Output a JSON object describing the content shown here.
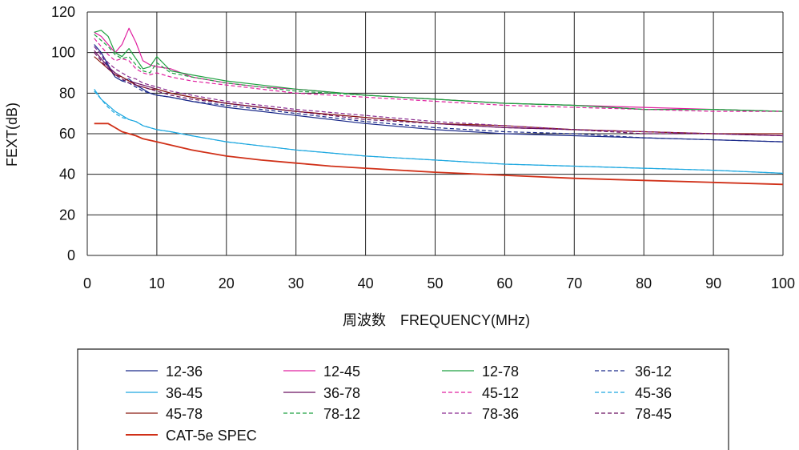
{
  "chart_data": {
    "type": "line",
    "title": "",
    "xlabel": "周波数　FREQUENCY(MHz)",
    "ylabel": "FEXT(dB)",
    "xlim": [
      0,
      100
    ],
    "ylim": [
      0,
      120
    ],
    "xticks": [
      0,
      10,
      20,
      30,
      40,
      50,
      60,
      70,
      80,
      90,
      100
    ],
    "yticks": [
      0,
      20,
      40,
      60,
      80,
      100,
      120
    ],
    "grid": true,
    "legend_position": "bottom",
    "series": [
      {
        "name": "12-36",
        "color": "#1b2a8a",
        "dash": "solid",
        "points": [
          [
            1,
            104
          ],
          [
            2,
            100
          ],
          [
            3,
            94
          ],
          [
            4,
            88
          ],
          [
            5,
            86
          ],
          [
            6,
            87
          ],
          [
            7,
            84
          ],
          [
            8,
            82
          ],
          [
            9,
            80
          ],
          [
            10,
            79
          ],
          [
            12,
            78
          ],
          [
            15,
            76
          ],
          [
            20,
            73
          ],
          [
            25,
            71
          ],
          [
            30,
            69
          ],
          [
            40,
            65
          ],
          [
            50,
            62
          ],
          [
            60,
            60
          ],
          [
            70,
            59
          ],
          [
            80,
            58
          ],
          [
            90,
            57
          ],
          [
            100,
            56
          ]
        ]
      },
      {
        "name": "12-45",
        "color": "#e020a0",
        "dash": "solid",
        "points": [
          [
            1,
            110
          ],
          [
            2,
            108
          ],
          [
            3,
            104
          ],
          [
            4,
            100
          ],
          [
            5,
            104
          ],
          [
            6,
            112
          ],
          [
            7,
            105
          ],
          [
            8,
            96
          ],
          [
            9,
            94
          ],
          [
            10,
            93
          ],
          [
            12,
            92
          ],
          [
            15,
            88
          ],
          [
            20,
            85
          ],
          [
            25,
            83
          ],
          [
            30,
            82
          ],
          [
            40,
            79
          ],
          [
            50,
            77
          ],
          [
            60,
            75
          ],
          [
            70,
            74
          ],
          [
            80,
            73
          ],
          [
            90,
            72
          ],
          [
            100,
            71
          ]
        ]
      },
      {
        "name": "12-78",
        "color": "#1ea040",
        "dash": "solid",
        "points": [
          [
            1,
            110
          ],
          [
            2,
            111
          ],
          [
            3,
            108
          ],
          [
            4,
            100
          ],
          [
            5,
            98
          ],
          [
            6,
            102
          ],
          [
            7,
            97
          ],
          [
            8,
            92
          ],
          [
            9,
            93
          ],
          [
            10,
            98
          ],
          [
            12,
            91
          ],
          [
            15,
            89
          ],
          [
            20,
            86
          ],
          [
            25,
            84
          ],
          [
            30,
            82
          ],
          [
            40,
            79
          ],
          [
            50,
            77
          ],
          [
            60,
            75
          ],
          [
            70,
            74
          ],
          [
            80,
            72
          ],
          [
            90,
            72
          ],
          [
            100,
            71
          ]
        ]
      },
      {
        "name": "36-12",
        "color": "#1b2a8a",
        "dash": "dash",
        "points": [
          [
            1,
            103
          ],
          [
            2,
            99
          ],
          [
            3,
            93
          ],
          [
            4,
            88
          ],
          [
            5,
            86
          ],
          [
            6,
            85
          ],
          [
            7,
            83
          ],
          [
            8,
            81
          ],
          [
            9,
            80
          ],
          [
            10,
            79
          ],
          [
            12,
            78
          ],
          [
            15,
            76
          ],
          [
            20,
            74
          ],
          [
            25,
            72
          ],
          [
            30,
            70
          ],
          [
            40,
            66
          ],
          [
            50,
            63
          ],
          [
            60,
            61
          ],
          [
            70,
            60
          ],
          [
            80,
            58
          ],
          [
            90,
            57
          ],
          [
            100,
            56
          ]
        ]
      },
      {
        "name": "36-45",
        "color": "#1ea8e0",
        "dash": "solid",
        "points": [
          [
            1,
            82
          ],
          [
            2,
            77
          ],
          [
            3,
            74
          ],
          [
            4,
            71
          ],
          [
            5,
            69
          ],
          [
            6,
            67
          ],
          [
            7,
            66
          ],
          [
            8,
            64
          ],
          [
            9,
            63
          ],
          [
            10,
            62
          ],
          [
            12,
            61
          ],
          [
            15,
            59
          ],
          [
            20,
            56
          ],
          [
            25,
            54
          ],
          [
            30,
            52
          ],
          [
            40,
            49
          ],
          [
            50,
            47
          ],
          [
            60,
            45
          ],
          [
            70,
            44
          ],
          [
            80,
            43
          ],
          [
            90,
            42
          ],
          [
            100,
            40.5
          ]
        ]
      },
      {
        "name": "36-78",
        "color": "#6a1060",
        "dash": "solid",
        "points": [
          [
            1,
            101
          ],
          [
            2,
            97
          ],
          [
            3,
            93
          ],
          [
            4,
            90
          ],
          [
            5,
            88
          ],
          [
            6,
            86
          ],
          [
            7,
            85
          ],
          [
            8,
            84
          ],
          [
            9,
            83
          ],
          [
            10,
            82
          ],
          [
            12,
            80
          ],
          [
            15,
            78
          ],
          [
            20,
            75
          ],
          [
            25,
            73
          ],
          [
            30,
            71
          ],
          [
            40,
            68
          ],
          [
            50,
            65
          ],
          [
            60,
            63
          ],
          [
            70,
            62
          ],
          [
            80,
            61
          ],
          [
            90,
            60
          ],
          [
            100,
            59
          ]
        ]
      },
      {
        "name": "45-12",
        "color": "#e020a0",
        "dash": "dash",
        "points": [
          [
            1,
            107
          ],
          [
            2,
            103
          ],
          [
            3,
            99
          ],
          [
            4,
            96
          ],
          [
            5,
            97
          ],
          [
            6,
            96
          ],
          [
            7,
            92
          ],
          [
            8,
            90
          ],
          [
            9,
            89
          ],
          [
            10,
            90
          ],
          [
            12,
            88
          ],
          [
            15,
            86
          ],
          [
            20,
            84
          ],
          [
            25,
            82
          ],
          [
            30,
            80
          ],
          [
            40,
            78
          ],
          [
            50,
            76
          ],
          [
            60,
            74
          ],
          [
            70,
            73
          ],
          [
            80,
            72
          ],
          [
            90,
            71
          ],
          [
            100,
            71
          ]
        ]
      },
      {
        "name": "45-36",
        "color": "#1ea8e0",
        "dash": "dash",
        "points": [
          [
            1,
            81
          ],
          [
            2,
            77
          ],
          [
            3,
            73
          ],
          [
            4,
            70
          ],
          [
            5,
            68
          ],
          [
            6,
            67
          ],
          [
            7,
            66
          ],
          [
            8,
            64
          ],
          [
            9,
            63
          ],
          [
            10,
            62
          ],
          [
            12,
            61
          ],
          [
            15,
            59
          ],
          [
            20,
            56
          ],
          [
            25,
            54
          ],
          [
            30,
            52
          ],
          [
            40,
            49
          ],
          [
            50,
            47
          ],
          [
            60,
            45
          ],
          [
            70,
            44
          ],
          [
            80,
            43
          ],
          [
            90,
            42
          ],
          [
            100,
            40.5
          ]
        ]
      },
      {
        "name": "45-78",
        "color": "#8a1a10",
        "dash": "solid",
        "points": [
          [
            1,
            98
          ],
          [
            2,
            95
          ],
          [
            3,
            92
          ],
          [
            4,
            89
          ],
          [
            5,
            88
          ],
          [
            6,
            86
          ],
          [
            7,
            84
          ],
          [
            8,
            83
          ],
          [
            9,
            82
          ],
          [
            10,
            82
          ],
          [
            12,
            80
          ],
          [
            15,
            78
          ],
          [
            20,
            75
          ],
          [
            25,
            73
          ],
          [
            30,
            71
          ],
          [
            40,
            68
          ],
          [
            50,
            65
          ],
          [
            60,
            64
          ],
          [
            70,
            62
          ],
          [
            80,
            61
          ],
          [
            90,
            60
          ],
          [
            100,
            60
          ]
        ]
      },
      {
        "name": "78-12",
        "color": "#1ea040",
        "dash": "dash",
        "points": [
          [
            1,
            109
          ],
          [
            2,
            106
          ],
          [
            3,
            103
          ],
          [
            4,
            99
          ],
          [
            5,
            97
          ],
          [
            6,
            98
          ],
          [
            7,
            94
          ],
          [
            8,
            91
          ],
          [
            9,
            90
          ],
          [
            10,
            95
          ],
          [
            12,
            90
          ],
          [
            15,
            88
          ],
          [
            20,
            85
          ],
          [
            25,
            83
          ],
          [
            30,
            81
          ],
          [
            40,
            79
          ],
          [
            50,
            77
          ],
          [
            60,
            75
          ],
          [
            70,
            74
          ],
          [
            80,
            72
          ],
          [
            90,
            72
          ],
          [
            100,
            71
          ]
        ]
      },
      {
        "name": "78-36",
        "color": "#8a2a90",
        "dash": "dash",
        "points": [
          [
            1,
            103
          ],
          [
            2,
            99
          ],
          [
            3,
            95
          ],
          [
            4,
            92
          ],
          [
            5,
            90
          ],
          [
            6,
            88
          ],
          [
            7,
            87
          ],
          [
            8,
            85
          ],
          [
            9,
            84
          ],
          [
            10,
            83
          ],
          [
            12,
            81
          ],
          [
            15,
            79
          ],
          [
            20,
            76
          ],
          [
            25,
            74
          ],
          [
            30,
            72
          ],
          [
            40,
            69
          ],
          [
            50,
            66
          ],
          [
            60,
            64
          ],
          [
            70,
            62
          ],
          [
            80,
            61
          ],
          [
            90,
            60
          ],
          [
            100,
            59
          ]
        ]
      },
      {
        "name": "78-45",
        "color": "#6a1060",
        "dash": "dash",
        "points": [
          [
            1,
            100
          ],
          [
            2,
            96
          ],
          [
            3,
            92
          ],
          [
            4,
            89
          ],
          [
            5,
            87
          ],
          [
            6,
            85
          ],
          [
            7,
            84
          ],
          [
            8,
            83
          ],
          [
            9,
            82
          ],
          [
            10,
            81
          ],
          [
            12,
            79
          ],
          [
            15,
            77
          ],
          [
            20,
            75
          ],
          [
            25,
            73
          ],
          [
            30,
            71
          ],
          [
            40,
            67
          ],
          [
            50,
            65
          ],
          [
            60,
            63
          ],
          [
            70,
            62
          ],
          [
            80,
            60
          ],
          [
            90,
            60
          ],
          [
            100,
            59
          ]
        ]
      },
      {
        "name": "CAT-5e SPEC",
        "color": "#d03018",
        "dash": "solid",
        "points": [
          [
            1,
            65
          ],
          [
            2,
            65
          ],
          [
            3,
            65
          ],
          [
            4,
            63
          ],
          [
            5,
            61
          ],
          [
            6,
            60
          ],
          [
            7,
            59
          ],
          [
            8,
            57.5
          ],
          [
            10,
            56
          ],
          [
            15,
            52
          ],
          [
            20,
            49
          ],
          [
            25,
            47
          ],
          [
            30,
            45.5
          ],
          [
            35,
            44
          ],
          [
            40,
            43
          ],
          [
            50,
            41
          ],
          [
            60,
            39.5
          ],
          [
            70,
            38
          ],
          [
            80,
            37
          ],
          [
            90,
            36
          ],
          [
            100,
            35
          ]
        ]
      }
    ]
  }
}
